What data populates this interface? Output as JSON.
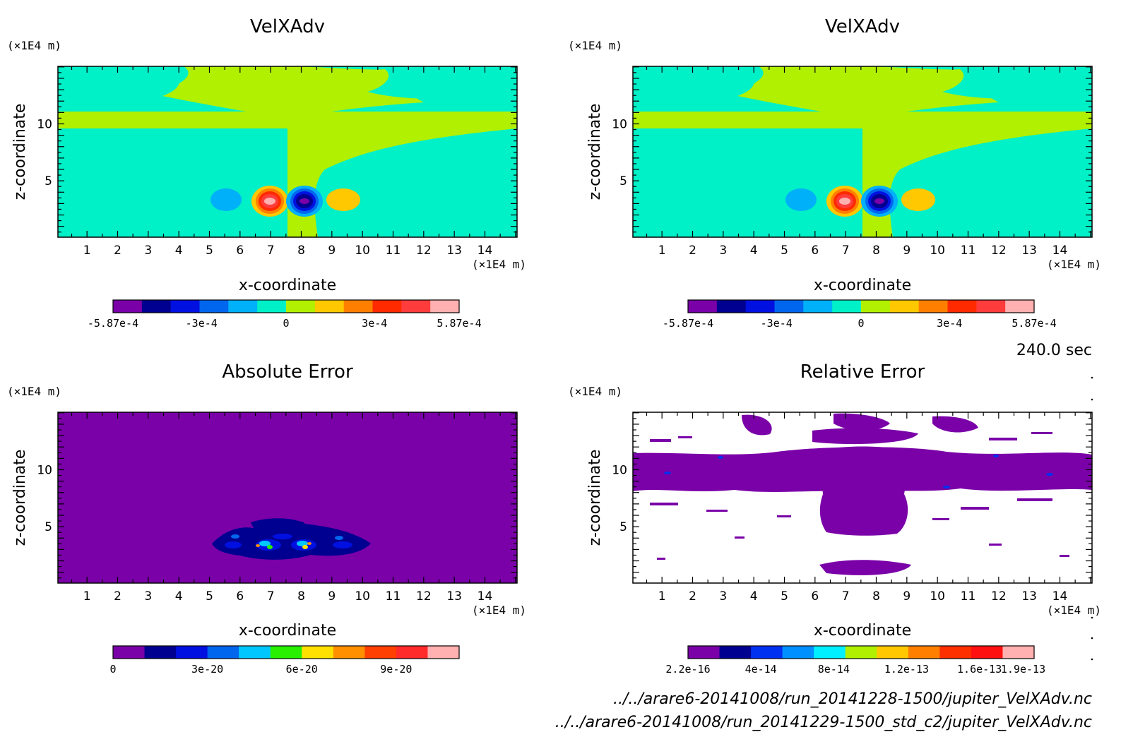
{
  "time_label": "240.0 sec",
  "file_paths": [
    "../../arare6-20141008/run_20141228-1500/jupiter_VelXAdv.nc",
    "../../arare6-20141008/run_20141229-1500_std_c2/jupiter_VelXAdv.nc"
  ],
  "chart_data": [
    {
      "id": "top-left",
      "type": "heatmap",
      "title": "VelXAdv",
      "xlabel": "x-coordinate",
      "ylabel": "z-coordinate",
      "x_unit": "(×1E4 m)",
      "y_unit": "(×1E4 m)",
      "x_ticks": [
        1,
        2,
        3,
        4,
        5,
        6,
        7,
        8,
        9,
        10,
        11,
        12,
        13,
        14
      ],
      "y_ticks": [
        5,
        10
      ],
      "xlim": [
        0.05,
        15.05
      ],
      "ylim": [
        0.05,
        15.05
      ],
      "colorbar": {
        "colors": [
          "#7a00a8",
          "#000090",
          "#0010e0",
          "#0066ee",
          "#00b0f8",
          "#00f0c8",
          "#b0f000",
          "#ffc800",
          "#ff8000",
          "#ff2a00",
          "#ff3c3c",
          "#ffb0b0"
        ],
        "labels": [
          "-5.87e-4",
          "-3e-4",
          "0",
          "3e-4",
          "5.87e-4"
        ],
        "label_positions": [
          0,
          0.2556,
          0.5,
          0.7556,
          1
        ]
      }
    },
    {
      "id": "top-right",
      "type": "heatmap",
      "title": "VelXAdv",
      "xlabel": "x-coordinate",
      "ylabel": "z-coordinate",
      "x_unit": "(×1E4 m)",
      "y_unit": "(×1E4 m)",
      "x_ticks": [
        1,
        2,
        3,
        4,
        5,
        6,
        7,
        8,
        9,
        10,
        11,
        12,
        13,
        14
      ],
      "y_ticks": [
        5,
        10
      ],
      "xlim": [
        0.05,
        15.05
      ],
      "ylim": [
        0.05,
        15.05
      ],
      "colorbar": {
        "colors": [
          "#7a00a8",
          "#000090",
          "#0010e0",
          "#0066ee",
          "#00b0f8",
          "#00f0c8",
          "#b0f000",
          "#ffc800",
          "#ff8000",
          "#ff2a00",
          "#ff3c3c",
          "#ffb0b0"
        ],
        "labels": [
          "-5.87e-4",
          "-3e-4",
          "0",
          "3e-4",
          "5.87e-4"
        ],
        "label_positions": [
          0,
          0.2556,
          0.5,
          0.7556,
          1
        ]
      }
    },
    {
      "id": "bottom-left",
      "type": "heatmap",
      "title": "Absolute Error",
      "xlabel": "x-coordinate",
      "ylabel": "z-coordinate",
      "x_unit": "(×1E4 m)",
      "y_unit": "(×1E4 m)",
      "x_ticks": [
        1,
        2,
        3,
        4,
        5,
        6,
        7,
        8,
        9,
        10,
        11,
        12,
        13,
        14
      ],
      "y_ticks": [
        5,
        10
      ],
      "xlim": [
        0.05,
        15.05
      ],
      "ylim": [
        0.05,
        15.05
      ],
      "colorbar": {
        "colors": [
          "#7a00a8",
          "#000090",
          "#0010e0",
          "#0066ee",
          "#00c8ff",
          "#28f000",
          "#ffe000",
          "#ff9000",
          "#ff4000",
          "#ff2a2a",
          "#ffb0b0"
        ],
        "labels": [
          "0",
          "3e-20",
          "6e-20",
          "9e-20"
        ],
        "label_positions": [
          0,
          0.2727,
          0.5454,
          0.8181
        ]
      }
    },
    {
      "id": "bottom-right",
      "type": "heatmap",
      "title": "Relative Error",
      "xlabel": "x-coordinate",
      "ylabel": "z-coordinate",
      "x_unit": "(×1E4 m)",
      "y_unit": "(×1E4 m)",
      "x_ticks": [
        1,
        2,
        3,
        4,
        5,
        6,
        7,
        8,
        9,
        10,
        11,
        12,
        13,
        14
      ],
      "y_ticks": [
        5,
        10
      ],
      "xlim": [
        0.05,
        15.05
      ],
      "ylim": [
        0.05,
        15.05
      ],
      "colorbar": {
        "colors": [
          "#7a00a8",
          "#000090",
          "#0030f0",
          "#0090ff",
          "#00f0ff",
          "#b0f000",
          "#ffc800",
          "#ff8000",
          "#ff3000",
          "#ff1010",
          "#ffb0b0"
        ],
        "labels": [
          "2.2e-16",
          "4e-14",
          "8e-14",
          "1.2e-13",
          "1.6e-13",
          "1.9e-13"
        ],
        "label_positions": [
          0,
          0.2105,
          0.421,
          0.6315,
          0.8421,
          0.9684
        ]
      }
    }
  ]
}
